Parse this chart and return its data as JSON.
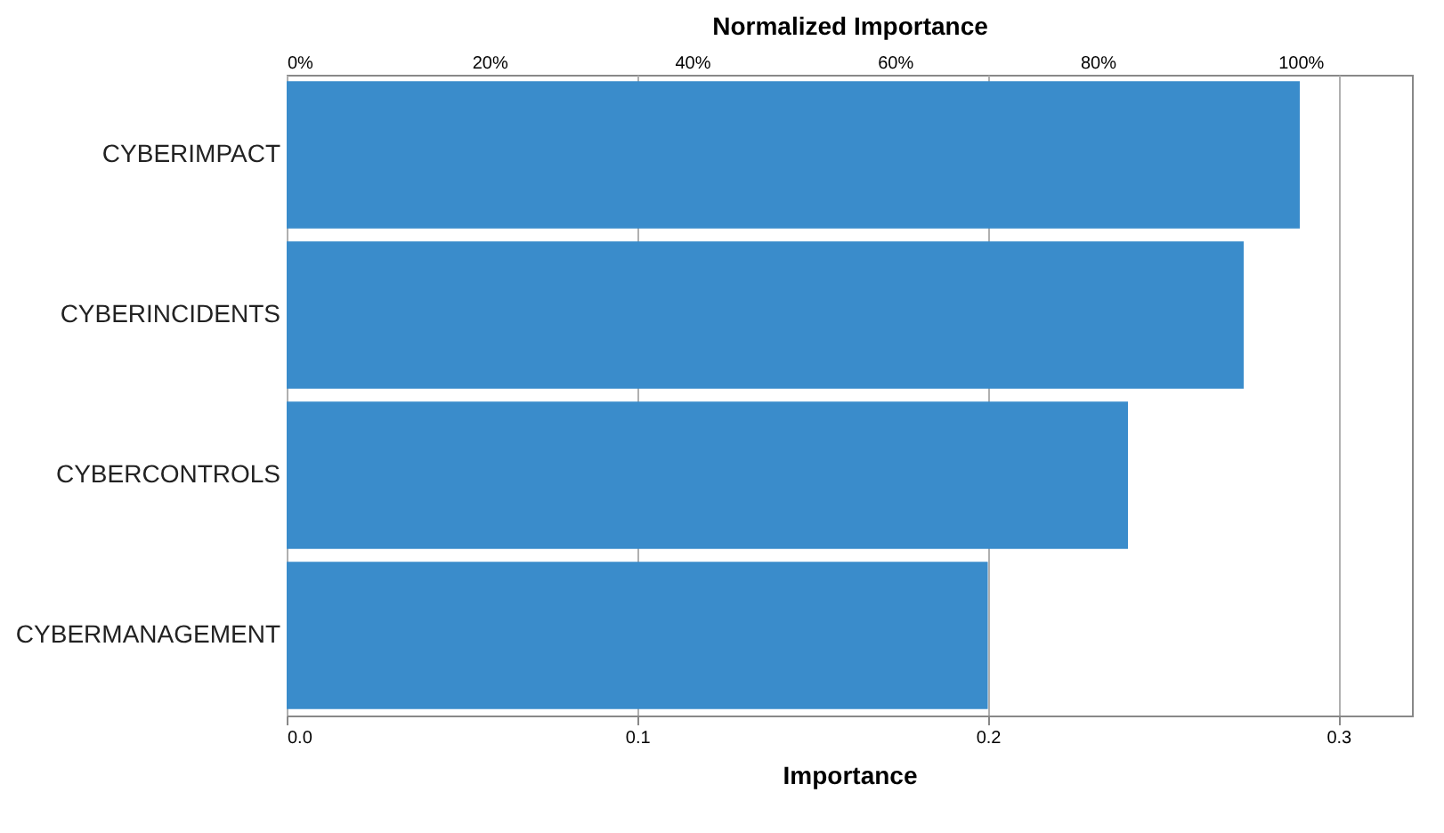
{
  "chart_data": {
    "type": "bar",
    "orientation": "horizontal",
    "xlabel": "Importance",
    "x2label": "Normalized Importance",
    "categories": [
      "CYBERIMPACT",
      "CYBERINCIDENTS",
      "CYBERCONTROLS",
      "CYBERMANAGEMENT"
    ],
    "values": [
      0.289,
      0.273,
      0.24,
      0.2
    ],
    "color": "#3a8ccb",
    "xlim": [
      0,
      0.321
    ],
    "xticks": [
      {
        "value": 0,
        "label": "0.0"
      },
      0.1,
      0.2,
      0.3
    ],
    "x2lim": [
      0,
      111
    ],
    "x2ticks": [
      {
        "value": 0,
        "label": "0%"
      },
      {
        "value": 20,
        "label": "20%"
      },
      {
        "value": 40,
        "label": "40%"
      },
      {
        "value": 60,
        "label": "60%"
      },
      {
        "value": 80,
        "label": "80%"
      },
      {
        "value": 100,
        "label": "100%"
      }
    ],
    "grid": "x"
  }
}
